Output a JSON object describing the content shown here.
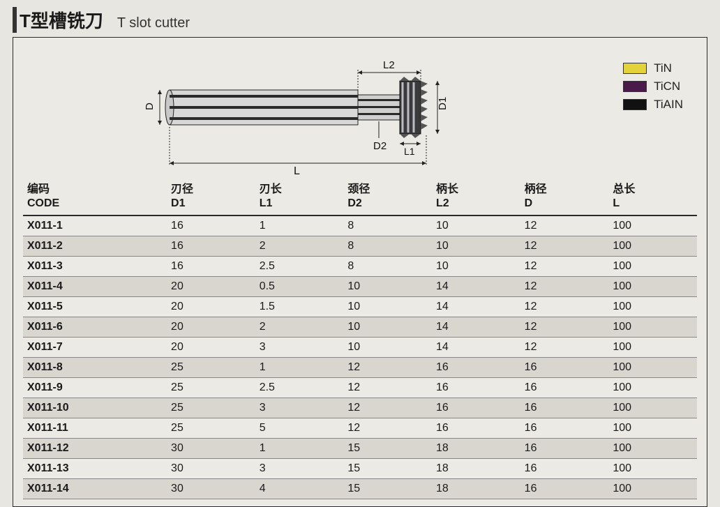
{
  "title_cn": "T型槽铣刀",
  "title_en": "T slot cutter",
  "diagram": {
    "labels": {
      "D": "D",
      "D1": "D1",
      "D2": "D2",
      "L": "L",
      "L1": "L1",
      "L2": "L2"
    },
    "shank_color": "#d8d8d8",
    "shank_stroke": "#222",
    "flute_color": "#2b2b2b",
    "cutter_dark": "#3a3a3a",
    "cutter_light": "#c8c8ce",
    "dim_line": "#222"
  },
  "legend": [
    {
      "label": "TiN",
      "color": "#e4d23a"
    },
    {
      "label": "TiCN",
      "color": "#4a1a4a"
    },
    {
      "label": "TiAIN",
      "color": "#111111"
    }
  ],
  "columns": [
    {
      "cn": "编码",
      "en": "CODE"
    },
    {
      "cn": "刃径",
      "en": "D1"
    },
    {
      "cn": "刃长",
      "en": "L1"
    },
    {
      "cn": "颈径",
      "en": "D2"
    },
    {
      "cn": "柄长",
      "en": "L2"
    },
    {
      "cn": "柄径",
      "en": "D"
    },
    {
      "cn": "总长",
      "en": "L"
    }
  ],
  "rows": [
    [
      "X011-1",
      "16",
      "1",
      "8",
      "10",
      "12",
      "100"
    ],
    [
      "X011-2",
      "16",
      "2",
      "8",
      "10",
      "12",
      "100"
    ],
    [
      "X011-3",
      "16",
      "2.5",
      "8",
      "10",
      "12",
      "100"
    ],
    [
      "X011-4",
      "20",
      "0.5",
      "10",
      "14",
      "12",
      "100"
    ],
    [
      "X011-5",
      "20",
      "1.5",
      "10",
      "14",
      "12",
      "100"
    ],
    [
      "X011-6",
      "20",
      "2",
      "10",
      "14",
      "12",
      "100"
    ],
    [
      "X011-7",
      "20",
      "3",
      "10",
      "14",
      "12",
      "100"
    ],
    [
      "X011-8",
      "25",
      "1",
      "12",
      "16",
      "16",
      "100"
    ],
    [
      "X011-9",
      "25",
      "2.5",
      "12",
      "16",
      "16",
      "100"
    ],
    [
      "X011-10",
      "25",
      "3",
      "12",
      "16",
      "16",
      "100"
    ],
    [
      "X011-11",
      "25",
      "5",
      "12",
      "16",
      "16",
      "100"
    ],
    [
      "X011-12",
      "30",
      "1",
      "15",
      "18",
      "16",
      "100"
    ],
    [
      "X011-13",
      "30",
      "3",
      "15",
      "18",
      "16",
      "100"
    ],
    [
      "X011-14",
      "30",
      "4",
      "15",
      "18",
      "16",
      "100"
    ]
  ],
  "colors": {
    "page_bg": "#e8e6e0",
    "frame_bg": "#eceae4",
    "alt_row": "#d8d6cf",
    "border": "#2a2a2a",
    "text": "#1a1a1a"
  }
}
